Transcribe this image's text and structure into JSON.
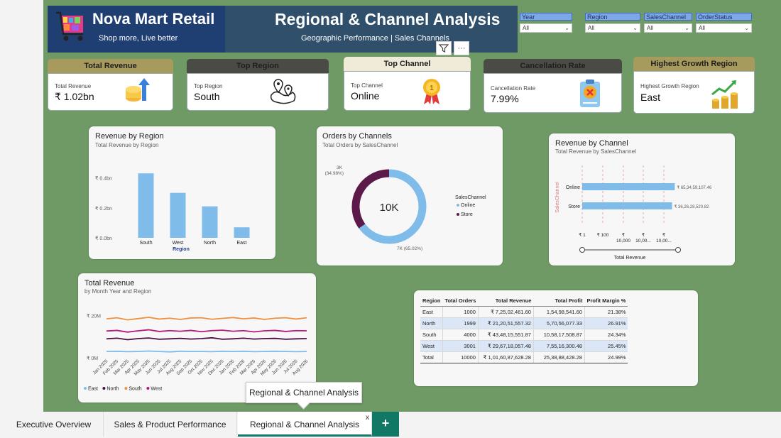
{
  "header": {
    "brand_title": "Nova Mart Retail",
    "brand_sub": "Shop more, Live better",
    "title": "Regional & Channel Analysis",
    "subtitle": "Geographic Performance | Sales Channels"
  },
  "slicers": [
    {
      "label": "Year",
      "value": "All"
    },
    {
      "label": "Region",
      "value": "All"
    },
    {
      "label": "SalesChannel",
      "value": "All"
    },
    {
      "label": "OrderStatus",
      "value": "All"
    }
  ],
  "visual_icons": {
    "filter": "filter-icon",
    "more": "···"
  },
  "kpis": {
    "total_revenue": {
      "head": "Total Revenue",
      "label": "Total Revenue",
      "value": "₹ 1.02bn",
      "icon": "revenue-coins-icon"
    },
    "top_region": {
      "head": "Top Region",
      "label": "Top Region",
      "value": "South",
      "icon": "map-pin-icon"
    },
    "top_channel": {
      "head": "Top Channel",
      "label": "Top Channel",
      "value": "Online",
      "icon": "medal-icon"
    },
    "cancellation": {
      "head": "Cancellation Rate",
      "label": "Cancellation Rate",
      "value": "7.99%",
      "icon": "clipboard-cancel-icon"
    },
    "growth": {
      "head": "Highest Growth Region",
      "label": "Highest Growth Region",
      "value": "East",
      "icon": "growth-coins-icon"
    }
  },
  "colors": {
    "canvas": "#6f9a65",
    "bar": "#7fbcea",
    "online": "#7fbcea",
    "store": "#5c1a4a",
    "east": "#7fbcea",
    "north": "#4a1042",
    "south": "#f28e3c",
    "west": "#b5197e",
    "accent": "#117865"
  },
  "chart_data": [
    {
      "type": "bar",
      "title": "Revenue by Region",
      "subtitle": "Total Revenue by Region",
      "xlabel": "Region",
      "ylabel": "",
      "categories": [
        "South",
        "West",
        "North",
        "East"
      ],
      "values": [
        0.43,
        0.3,
        0.21,
        0.07
      ],
      "yticks": [
        "₹ 0.4bn",
        "₹ 0.2bn",
        "₹ 0.0bn"
      ],
      "ylim": [
        0,
        0.45
      ]
    },
    {
      "type": "pie",
      "title": "Orders by Channels",
      "subtitle": "Total Orders by SalesChannel",
      "center_label": "10K",
      "legend_title": "SalesChannel",
      "slices": [
        {
          "name": "Online",
          "value": 65.02,
          "label": "7K (65.02%)"
        },
        {
          "name": "Store",
          "value": 34.98,
          "label": "3K (34.98%)"
        }
      ]
    },
    {
      "type": "bar",
      "title": "Revenue by Channel",
      "subtitle": "Total Revenue by SalesChannel",
      "orientation": "horizontal",
      "ylabel": "SalesChannel",
      "xlabel": "Total Revenue",
      "categories": [
        "Online",
        "Store"
      ],
      "values": [
        653459107.46,
        362628520.82
      ],
      "data_labels": [
        "₹ 65,34,59,107.46",
        "₹ 36,26,28,520.82"
      ],
      "xticks": [
        "₹ 1",
        "₹ 100",
        "₹\n10,000",
        "₹\n10,00...",
        "₹\n10,00..."
      ],
      "scale": "log"
    },
    {
      "type": "line",
      "title": "Total Revenue",
      "subtitle": "by Month Year and Region",
      "yticks": [
        "₹ 20M",
        "₹ 0M"
      ],
      "x": [
        "Jan 2025",
        "Feb 2025",
        "Mar 2025",
        "Apr 2025",
        "May 2025",
        "Jun 2025",
        "Jul 2025",
        "Aug 2025",
        "Sep 2025",
        "Oct 2025",
        "Nov 2025",
        "Dec 2025",
        "Jan 2026",
        "Feb 2026",
        "Mar 2026",
        "Apr 2026",
        "May 2026",
        "Jun 2026",
        "Jul 2026",
        "Aug 2026"
      ],
      "series": [
        {
          "name": "East",
          "values": [
            3,
            3.1,
            2.9,
            3,
            3.2,
            3,
            2.8,
            3.1,
            3,
            3,
            2.9,
            3.1,
            3,
            3.1,
            2.9,
            3,
            3.1,
            3,
            2.9,
            3
          ]
        },
        {
          "name": "North",
          "values": [
            9,
            9.3,
            8.6,
            9.1,
            9.4,
            8.8,
            9,
            9.2,
            8.9,
            9.1,
            9.5,
            8.8,
            9,
            9.3,
            8.9,
            9.1,
            9.2,
            8.8,
            9,
            9.1
          ]
        },
        {
          "name": "South",
          "values": [
            18.5,
            19,
            18,
            18.6,
            19.2,
            18.4,
            18.8,
            18.2,
            18.9,
            19,
            18.3,
            18.7,
            19.1,
            18.5,
            18.9,
            18.2,
            18.8,
            19,
            18.4,
            19
          ]
        },
        {
          "name": "West",
          "values": [
            12.7,
            13,
            12.2,
            12.8,
            13.3,
            12.5,
            12.9,
            12.6,
            13,
            12.4,
            12.9,
            13.1,
            12.6,
            12.9,
            12.3,
            12.8,
            13,
            12.5,
            12.9,
            12.8
          ]
        }
      ]
    },
    {
      "type": "table",
      "columns": [
        "Region",
        "Total Orders",
        "Total Revenue",
        "Total Profit",
        "Profit Margin %"
      ],
      "rows": [
        [
          "East",
          "1000",
          "₹ 7,25,02,461.60",
          "1,54,98,541.60",
          "21.38%"
        ],
        [
          "North",
          "1999",
          "₹ 21,20,51,557.32",
          "5,70,56,077.33",
          "26.91%"
        ],
        [
          "South",
          "4000",
          "₹ 43,48,15,551.87",
          "10,58,17,508.87",
          "24.34%"
        ],
        [
          "West",
          "3001",
          "₹ 29,67,18,057.48",
          "7,55,16,300.48",
          "25.45%"
        ]
      ],
      "total": [
        "Total",
        "10000",
        "₹ 1,01,60,87,628.28",
        "25,38,88,428.28",
        "24.99%"
      ]
    }
  ],
  "tooltip": "Regional & Channel Analysis",
  "tabs": [
    {
      "label": "Executive Overview"
    },
    {
      "label": "Sales & Product Performance"
    },
    {
      "label": "Regional & Channel Analysis"
    }
  ],
  "tab_close": "x",
  "add_tab": "+"
}
